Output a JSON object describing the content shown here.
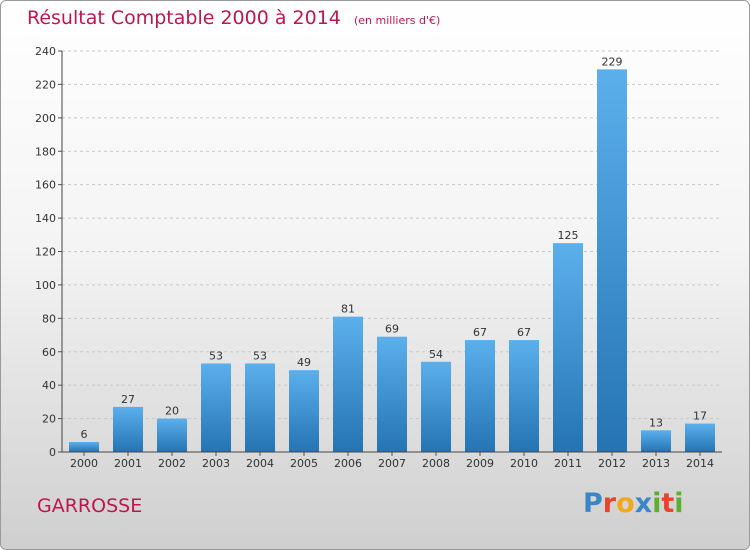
{
  "title": "Résultat Comptable 2000 à 2014",
  "unit_note": "(en milliers d'€)",
  "place": "GARROSSE",
  "logo": {
    "text": "Proxiti",
    "letters": [
      {
        "ch": "P",
        "color": "#3a86c8"
      },
      {
        "ch": "r",
        "color": "#e8452c"
      },
      {
        "ch": "o",
        "color": "#f2a81d"
      },
      {
        "ch": "x",
        "color": "#3a86c8"
      },
      {
        "ch": "i",
        "color": "#5cb030"
      },
      {
        "ch": "t",
        "color": "#e8452c"
      },
      {
        "ch": "i",
        "color": "#5cb030"
      }
    ]
  },
  "colors": {
    "accent": "#c0164f",
    "bar_light": "#5bb0ec",
    "bar_dark": "#2573b3"
  },
  "chart_data": {
    "type": "bar",
    "categories": [
      "2000",
      "2001",
      "2002",
      "2003",
      "2004",
      "2005",
      "2006",
      "2007",
      "2008",
      "2009",
      "2010",
      "2011",
      "2012",
      "2013",
      "2014"
    ],
    "values": [
      6,
      27,
      20,
      53,
      53,
      49,
      81,
      69,
      54,
      67,
      67,
      125,
      229,
      13,
      17
    ],
    "ylim": [
      0,
      240
    ],
    "yticks": [
      0,
      20,
      40,
      60,
      80,
      100,
      120,
      140,
      160,
      180,
      200,
      220,
      240
    ],
    "grid": true,
    "title": "Résultat Comptable 2000 à 2014",
    "xlabel": "",
    "ylabel": ""
  }
}
